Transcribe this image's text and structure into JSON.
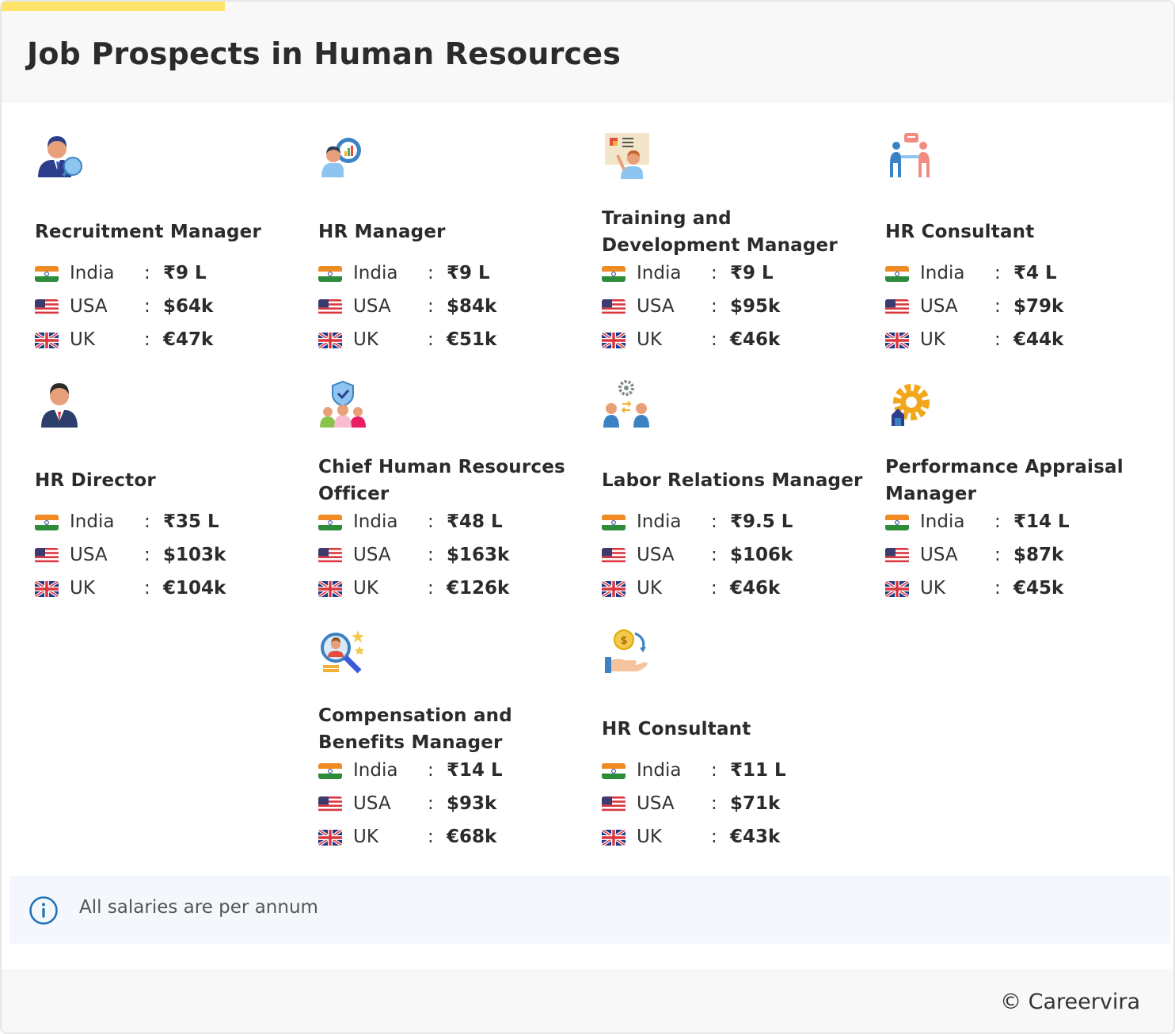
{
  "header": {
    "title": "Job Prospects in Human Resources"
  },
  "labels": {
    "india": "India",
    "usa": "USA",
    "uk": "UK",
    "colon": ":"
  },
  "jobs": [
    {
      "title": "Recruitment Manager",
      "icon": "recruiter-icon",
      "india": "₹9 L",
      "usa": "$64k",
      "uk": "€47k"
    },
    {
      "title": "HR Manager",
      "icon": "hr-manager-icon",
      "india": "₹9 L",
      "usa": "$84k",
      "uk": "€51k"
    },
    {
      "title": "Training and Development Manager",
      "icon": "training-icon",
      "india": "₹9 L",
      "usa": "$95k",
      "uk": "€46k"
    },
    {
      "title": "HR Consultant",
      "icon": "consultation-icon",
      "india": "₹4 L",
      "usa": "$79k",
      "uk": "€44k"
    },
    {
      "title": "HR Director",
      "icon": "director-icon",
      "india": "₹35 L",
      "usa": "$103k",
      "uk": "€104k"
    },
    {
      "title": "Chief Human Resources Officer",
      "icon": "team-shield-icon",
      "india": "₹48 L",
      "usa": "$163k",
      "uk": "€126k"
    },
    {
      "title": "Labor Relations Manager",
      "icon": "labor-exchange-icon",
      "india": "₹9.5 L",
      "usa": "$106k",
      "uk": "€46k"
    },
    {
      "title": "Performance Appraisal Manager",
      "icon": "performance-gear-icon",
      "india": "₹14 L",
      "usa": "$87k",
      "uk": "€45k"
    },
    {
      "title": "Compensation and Benefits Manager",
      "icon": "magnifier-star-icon",
      "india": "₹14 L",
      "usa": "$93k",
      "uk": "€68k"
    },
    {
      "title": "HR Consultant",
      "icon": "coin-hand-icon",
      "india": "₹11 L",
      "usa": "$71k",
      "uk": "€43k"
    }
  ],
  "info": {
    "text": "All salaries are per annum"
  },
  "footer": {
    "copyright": "© Careervira"
  },
  "colors": {
    "accent": "#fde36a",
    "info_blue": "#1e6fb8",
    "info_bg": "#f4f8fc"
  }
}
